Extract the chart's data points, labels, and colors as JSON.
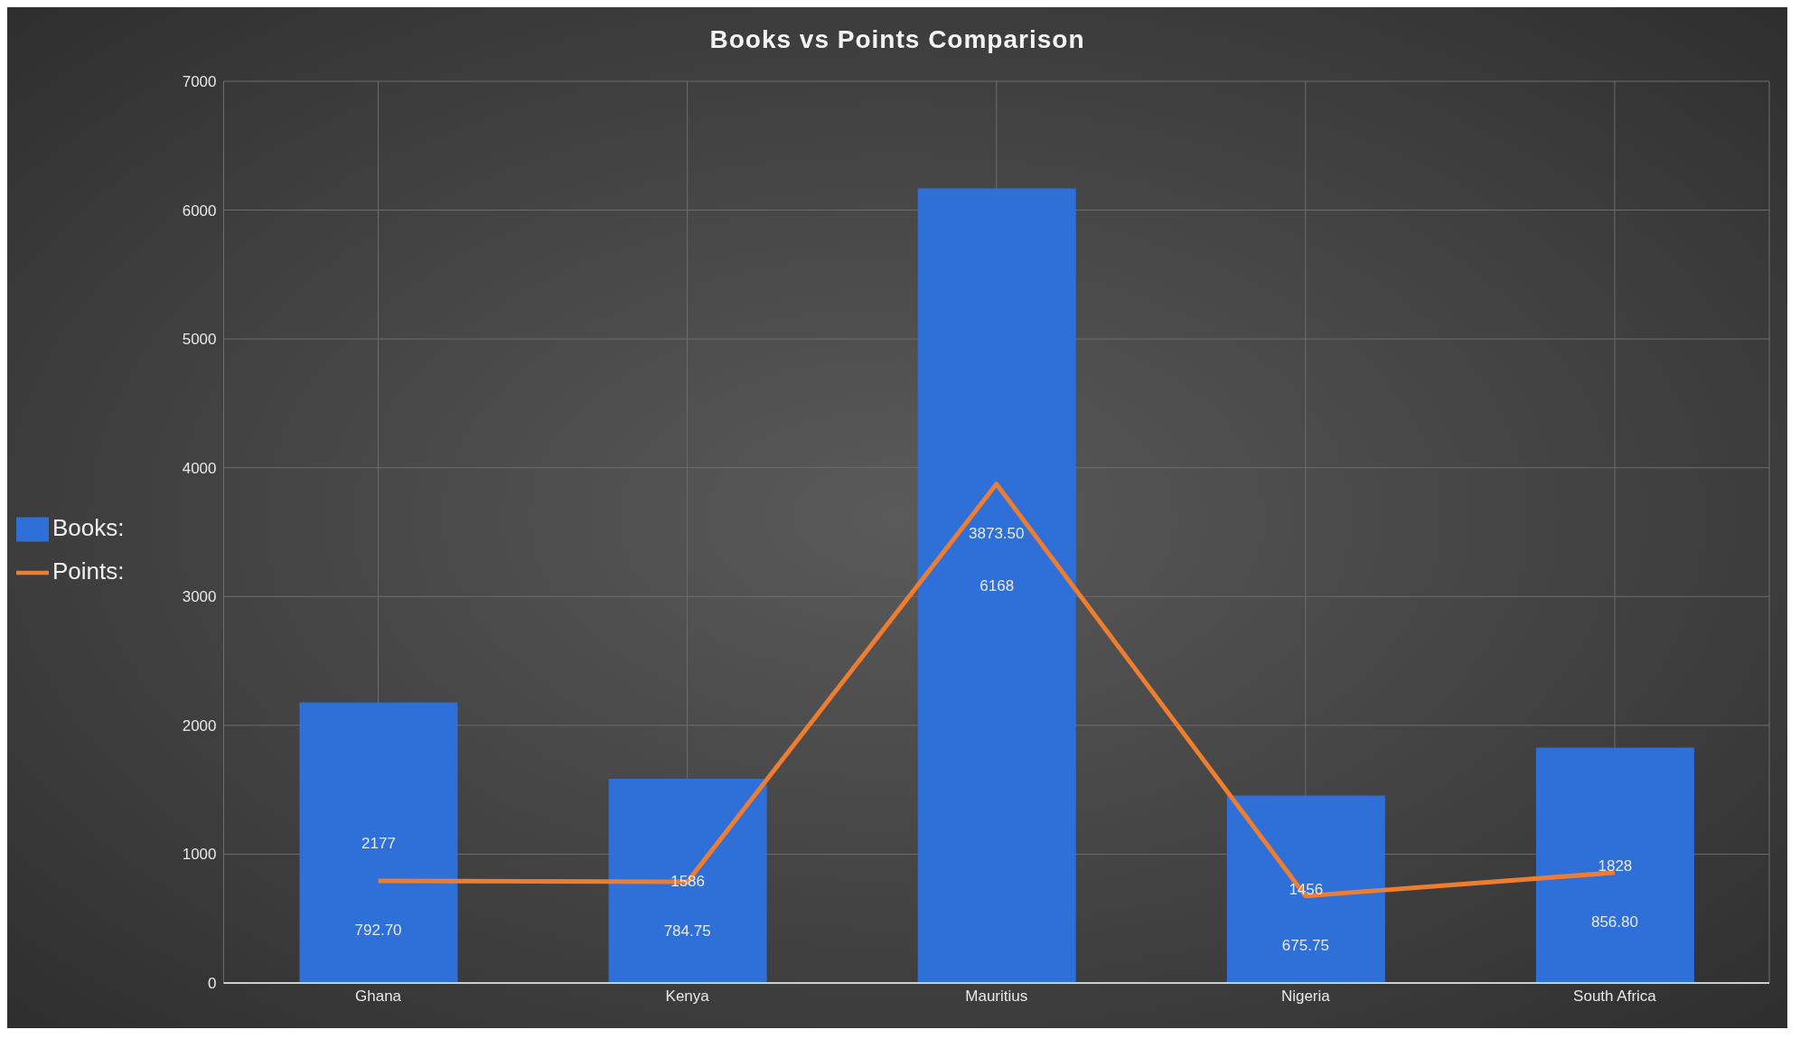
{
  "chart_data": {
    "type": "bar",
    "title": "Books vs Points Comparison",
    "categories": [
      "Ghana",
      "Kenya",
      "Mauritius",
      "Nigeria",
      "South Africa"
    ],
    "series": [
      {
        "name": "Books:",
        "color": "#2f6fd8",
        "values": [
          2177,
          1586,
          6168,
          1456,
          1828
        ]
      },
      {
        "name": "Points:",
        "type": "line",
        "color": "#ed7d31",
        "values": [
          792.7,
          784.75,
          3873.5,
          675.75,
          856.8
        ],
        "value_labels": [
          "792.70",
          "784.75",
          "3873.50",
          "675.75",
          "856.80"
        ]
      }
    ],
    "ylim": [
      0,
      7000
    ],
    "yticks": [
      0,
      1000,
      2000,
      3000,
      4000,
      5000,
      6000,
      7000
    ],
    "grid": true,
    "legend": "left",
    "data_labels": true,
    "marker": "none",
    "line_style": "solid"
  }
}
